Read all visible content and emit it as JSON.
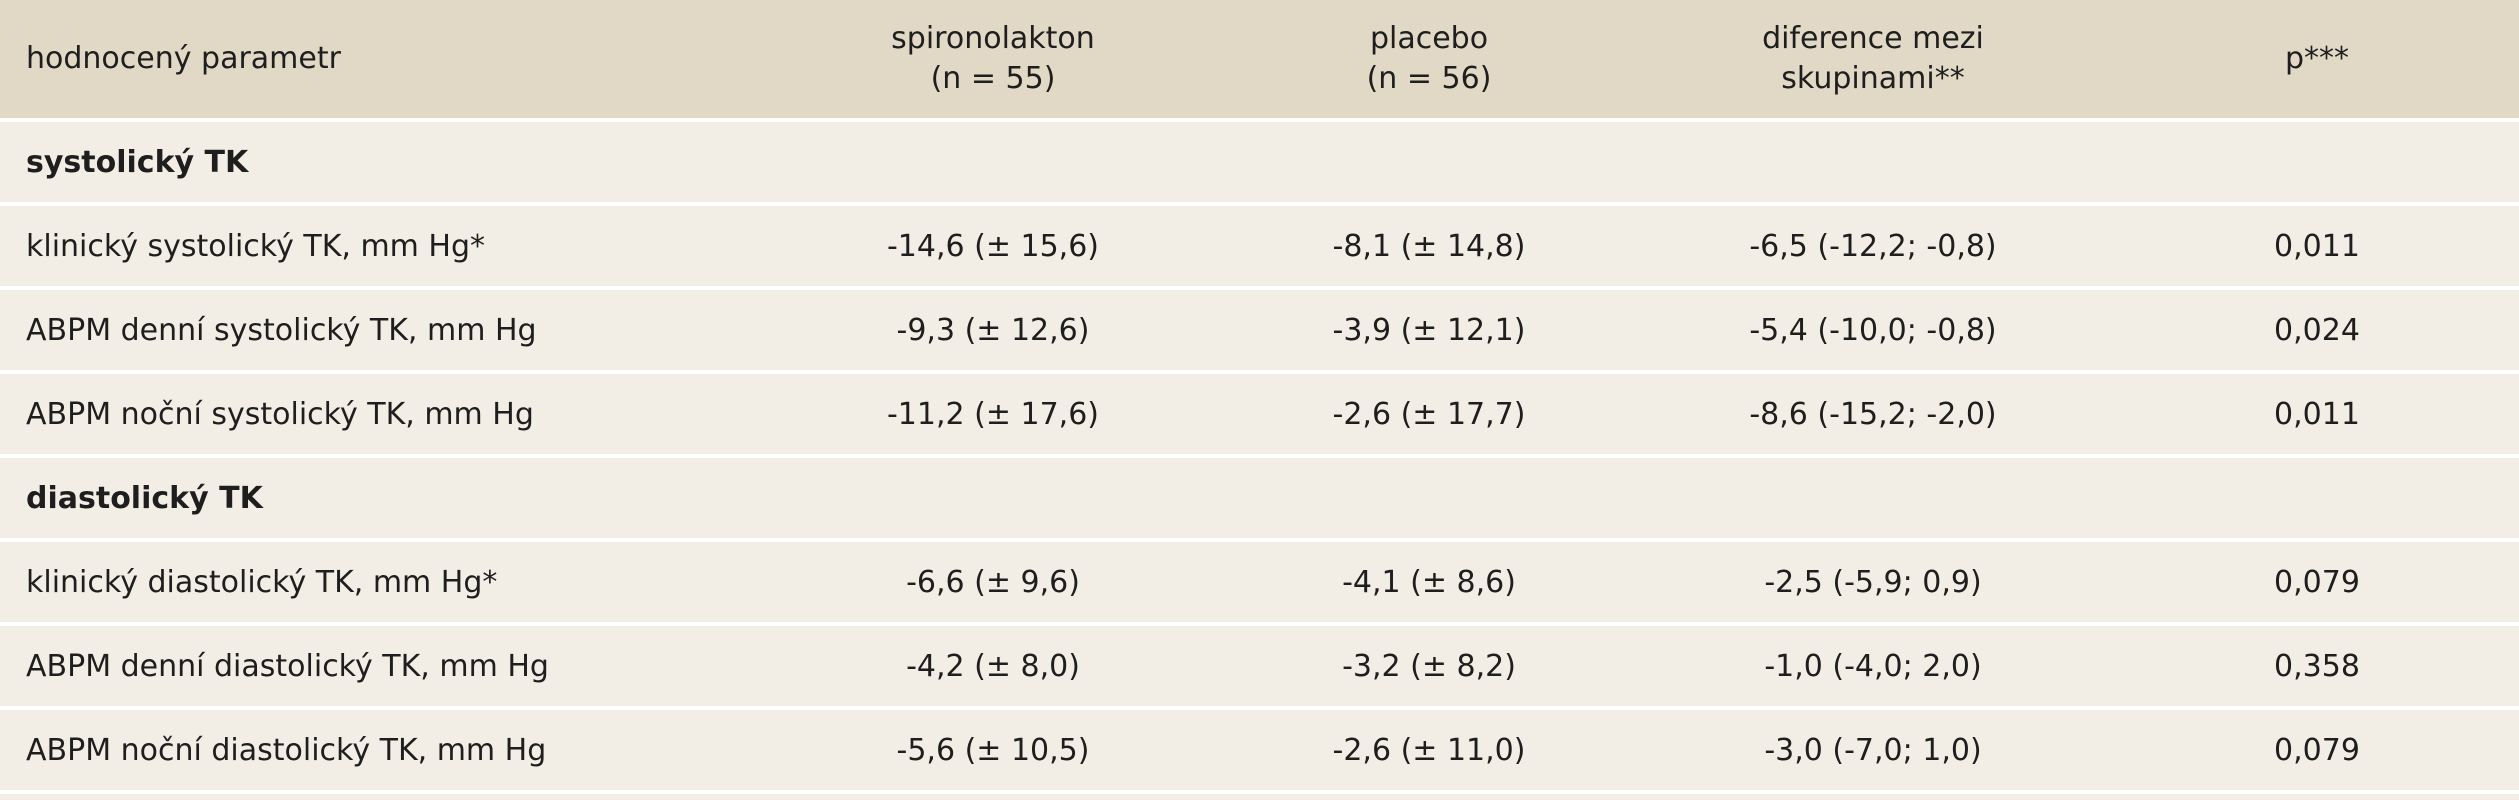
{
  "header": {
    "columns": [
      [
        "hodnocený parametr"
      ],
      [
        "spironolakton",
        "(n = 55)"
      ],
      [
        "placebo",
        "(n = 56)"
      ],
      [
        "diference mezi",
        "skupinami**"
      ],
      [
        "p***"
      ]
    ]
  },
  "sections": [
    {
      "title": "systolický TK",
      "rows": [
        [
          "klinický systolický TK, mm Hg*",
          "-14,6 (± 15,6)",
          "-8,1 (± 14,8)",
          "-6,5 (-12,2; -0,8)",
          "0,011"
        ],
        [
          "ABPM denní systolický TK, mm Hg",
          "-9,3 (± 12,6)",
          "-3,9 (± 12,1)",
          "-5,4 (-10,0; -0,8)",
          "0,024"
        ],
        [
          "ABPM noční systolický TK, mm Hg",
          "-11,2 (± 17,6)",
          "-2,6 (± 17,7)",
          "-8,6 (-15,2; -2,0)",
          "0,011"
        ]
      ]
    },
    {
      "title": "diastolický TK",
      "rows": [
        [
          "klinický diastolický TK, mm Hg*",
          "-6,6 (± 9,6)",
          "-4,1 (± 8,6)",
          "-2,5 (-5,9; 0,9)",
          "0,079"
        ],
        [
          "ABPM denní diastolický TK, mm Hg",
          "-4,2 (± 8,0)",
          "-3,2 (± 8,2)",
          "-1,0 (-4,0; 2,0)",
          "0,358"
        ],
        [
          "ABPM noční diastolický TK, mm Hg",
          "-5,6 (± 10,5)",
          "-2,6 (± 11,0)",
          "-3,0 (-7,0; 1,0)",
          "0,079"
        ]
      ]
    }
  ]
}
